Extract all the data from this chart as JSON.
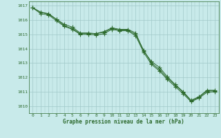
{
  "title": "Graphe pression niveau de la mer (hPa)",
  "background_color": "#c8eaea",
  "grid_color": "#a0c8c8",
  "line_color": "#2d6a2d",
  "xlim": [
    -0.5,
    23.5
  ],
  "ylim": [
    1009.5,
    1017.3
  ],
  "yticks": [
    1010,
    1011,
    1012,
    1013,
    1014,
    1015,
    1016,
    1017
  ],
  "xticks": [
    0,
    1,
    2,
    3,
    4,
    5,
    6,
    7,
    8,
    9,
    10,
    11,
    12,
    13,
    14,
    15,
    16,
    17,
    18,
    19,
    20,
    21,
    22,
    23
  ],
  "line1_x": [
    0,
    1,
    2,
    3,
    4,
    5,
    6,
    7,
    8,
    9,
    10,
    11,
    12,
    13,
    14,
    15,
    16,
    17,
    18,
    19,
    20,
    21,
    22,
    23
  ],
  "line1_y": [
    1016.85,
    1016.55,
    1016.45,
    1016.05,
    1015.7,
    1015.5,
    1015.1,
    1015.1,
    1015.05,
    1015.2,
    1015.45,
    1015.35,
    1015.35,
    1015.1,
    1013.85,
    1013.1,
    1012.7,
    1012.05,
    1011.5,
    1011.0,
    1010.4,
    1010.65,
    1011.1,
    1011.1
  ],
  "line2_x": [
    0,
    1,
    2,
    3,
    4,
    5,
    6,
    7,
    8,
    9,
    10,
    11,
    12,
    13,
    14,
    15,
    16,
    17,
    18,
    19,
    20,
    21,
    22,
    23
  ],
  "line2_y": [
    1016.85,
    1016.55,
    1016.4,
    1016.05,
    1015.6,
    1015.4,
    1015.05,
    1015.05,
    1015.05,
    1015.15,
    1015.4,
    1015.3,
    1015.3,
    1015.0,
    1013.9,
    1013.0,
    1012.55,
    1011.95,
    1011.45,
    1010.95,
    1010.35,
    1010.6,
    1011.05,
    1011.05
  ],
  "line3_x": [
    0,
    1,
    2,
    3,
    4,
    5,
    6,
    7,
    8,
    9,
    10,
    11,
    12,
    13,
    14,
    15,
    16,
    17,
    18,
    19,
    20,
    21,
    22,
    23
  ],
  "line3_y": [
    1016.85,
    1016.45,
    1016.35,
    1015.95,
    1015.55,
    1015.35,
    1015.0,
    1015.0,
    1014.95,
    1015.05,
    1015.35,
    1015.25,
    1015.25,
    1014.9,
    1013.75,
    1012.9,
    1012.45,
    1011.85,
    1011.35,
    1010.85,
    1010.3,
    1010.55,
    1010.95,
    1011.0
  ]
}
